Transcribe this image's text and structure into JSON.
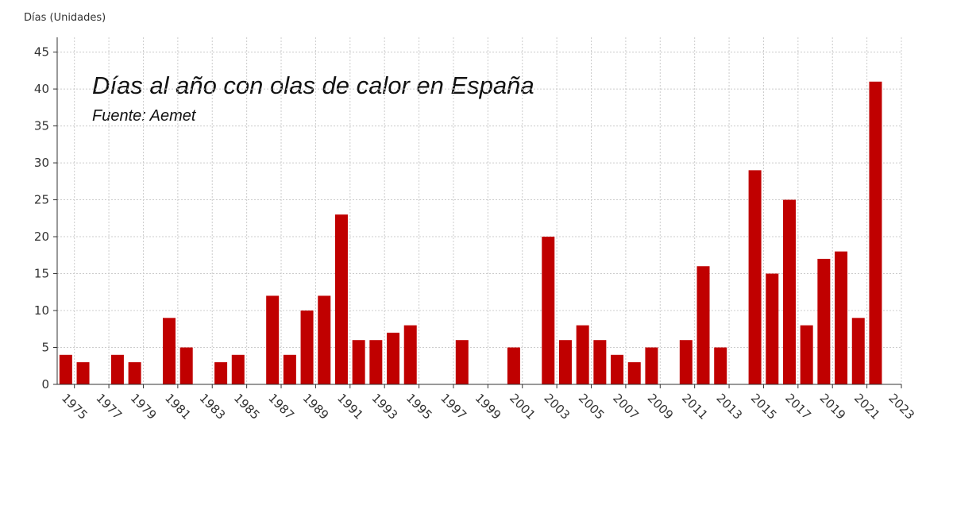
{
  "chart_data": {
    "type": "bar",
    "title": "Días al año con olas de calor en España",
    "subtitle": "Fuente: Aemet",
    "y_label": "Días (Unidades)",
    "categories": [
      "1975",
      null,
      "1977",
      null,
      "1979",
      null,
      "1981",
      null,
      "1983",
      null,
      "1985",
      null,
      "1987",
      null,
      "1989",
      null,
      "1991",
      null,
      "1993",
      null,
      "1995",
      null,
      "1997",
      null,
      "1999",
      null,
      "2001",
      null,
      "2003",
      null,
      "2005",
      null,
      "2007",
      null,
      "2009",
      null,
      "2011",
      null,
      "2013",
      null,
      "2015",
      null,
      "2017",
      null,
      "2019",
      null,
      "2021",
      null,
      "2023"
    ],
    "values": [
      4,
      3,
      0,
      4,
      3,
      0,
      9,
      5,
      0,
      3,
      4,
      0,
      12,
      4,
      10,
      12,
      23,
      6,
      6,
      7,
      8,
      0,
      0,
      6,
      0,
      0,
      5,
      0,
      20,
      6,
      8,
      6,
      4,
      3,
      5,
      0,
      6,
      16,
      5,
      0,
      29,
      15,
      25,
      8,
      17,
      18,
      9,
      41,
      null
    ],
    "color": "#c00000",
    "ylim": [
      0,
      47
    ],
    "yticks": [
      0,
      5,
      10,
      15,
      20,
      25,
      30,
      35,
      40,
      45
    ],
    "grid": true
  }
}
